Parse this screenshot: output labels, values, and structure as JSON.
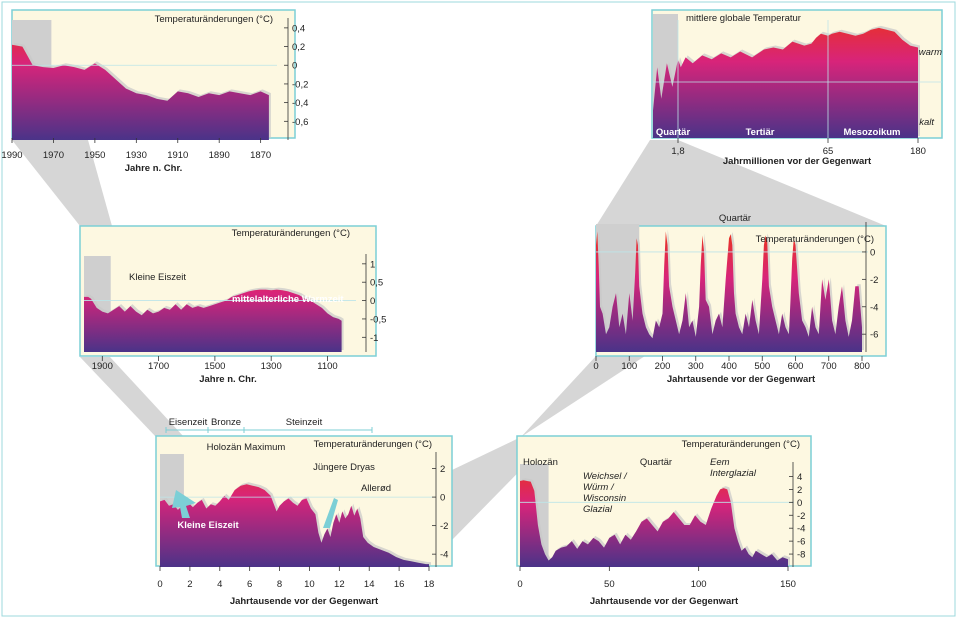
{
  "colors": {
    "top": "#e8312a",
    "mid": "#d8247a",
    "bottom": "#4a3388",
    "frame": "#7ccfd6",
    "bg": "#fdf8e1",
    "connector": "#d6d6d6",
    "shadow": "#c8c8c8",
    "highlight": "#cfcfcf"
  },
  "chart_data": [
    {
      "id": "p1",
      "type": "area",
      "xlabel": "Jahre n. Chr.",
      "ylabel": "Temperaturänderungen (°C)",
      "xlim": [
        1990,
        1865
      ],
      "ylim": [
        -0.8,
        0.42
      ],
      "xticks": [
        1990,
        1970,
        1950,
        1930,
        1910,
        1890,
        1870
      ],
      "yticks": [
        0.4,
        0.2,
        0,
        -0.2,
        -0.4,
        -0.6
      ],
      "ytick_labels": [
        "0,4",
        "0,2",
        "0",
        "-0,2",
        "-0,4",
        "-0,6"
      ],
      "x": [
        1990,
        1985,
        1983,
        1980,
        1975,
        1970,
        1965,
        1960,
        1955,
        1950,
        1945,
        1940,
        1935,
        1930,
        1925,
        1920,
        1915,
        1910,
        1905,
        1900,
        1895,
        1890,
        1885,
        1880,
        1875,
        1870,
        1866
      ],
      "y": [
        0.22,
        0.2,
        0.12,
        0.0,
        -0.02,
        -0.03,
        0.0,
        -0.02,
        -0.05,
        0.02,
        -0.05,
        -0.15,
        -0.25,
        -0.3,
        -0.32,
        -0.36,
        -0.38,
        -0.28,
        -0.3,
        -0.34,
        -0.3,
        -0.32,
        -0.28,
        -0.3,
        -0.32,
        -0.28,
        -0.32
      ],
      "highlight": [
        1990,
        1971
      ]
    },
    {
      "id": "p2",
      "type": "area",
      "title": "mittlere globale Temperatur",
      "xlabel": "Jahrmillionen vor der Gegenwart",
      "xticks": [
        1.8,
        65,
        180
      ],
      "xtick_labels": [
        "1,8",
        "65",
        "180"
      ],
      "labels": {
        "warm": "warm",
        "kalt": "kalt"
      },
      "segments": [
        "Quartär",
        "Tertiär",
        "Mesozoikum"
      ],
      "x": [
        0,
        0.3,
        0.6,
        1.0,
        1.4,
        1.8,
        3,
        5,
        8,
        12,
        16,
        20,
        24,
        28,
        33,
        38,
        42,
        46,
        50,
        55,
        58,
        60,
        62,
        65,
        70,
        80,
        90,
        100,
        110,
        120,
        130,
        140,
        150,
        160,
        170,
        180
      ],
      "y": [
        -0.9,
        0.2,
        -0.6,
        0.3,
        -0.3,
        0.4,
        0.2,
        0.45,
        0.3,
        0.5,
        0.4,
        0.55,
        0.45,
        0.6,
        0.45,
        0.65,
        0.7,
        0.65,
        0.85,
        0.75,
        0.8,
        0.95,
        1.05,
        1.0,
        1.05,
        1.1,
        1.05,
        1.0,
        1.05,
        1.15,
        1.2,
        1.15,
        1.1,
        0.9,
        0.75,
        0.7
      ],
      "ylim": [
        -1.6,
        1.4
      ],
      "highlight": [
        0,
        1.8
      ]
    },
    {
      "id": "p3",
      "type": "area",
      "xlabel": "Jahre n. Chr.",
      "ylabel": "Temperaturänderungen (°C)",
      "xlim": [
        1965,
        1020
      ],
      "ylim": [
        -1.4,
        1.05
      ],
      "xticks": [
        1900,
        1700,
        1500,
        1300,
        1100
      ],
      "yticks": [
        1,
        0.5,
        0,
        -0.5,
        -1
      ],
      "ytick_labels": [
        "1",
        "0,5",
        "0",
        "-0,5",
        "-1"
      ],
      "annotations": [
        "Kleine Eiszeit",
        "mittelalterliche Warmzeit"
      ],
      "x": [
        1965,
        1950,
        1940,
        1920,
        1900,
        1880,
        1860,
        1840,
        1820,
        1800,
        1780,
        1760,
        1740,
        1720,
        1700,
        1680,
        1660,
        1640,
        1620,
        1600,
        1580,
        1560,
        1540,
        1520,
        1500,
        1480,
        1460,
        1440,
        1420,
        1400,
        1380,
        1360,
        1340,
        1320,
        1300,
        1280,
        1260,
        1240,
        1220,
        1200,
        1180,
        1160,
        1140,
        1120,
        1100,
        1080,
        1060,
        1050
      ],
      "y": [
        0.1,
        0.1,
        0.05,
        -0.2,
        -0.3,
        -0.35,
        -0.25,
        -0.15,
        -0.3,
        -0.15,
        -0.3,
        -0.4,
        -0.25,
        -0.35,
        -0.3,
        -0.2,
        -0.25,
        -0.1,
        -0.25,
        -0.1,
        -0.2,
        -0.15,
        -0.2,
        -0.15,
        -0.1,
        -0.05,
        0.0,
        0.1,
        0.15,
        0.2,
        0.25,
        0.28,
        0.3,
        0.3,
        0.28,
        0.3,
        0.28,
        0.25,
        0.2,
        0.15,
        0.05,
        0.0,
        -0.1,
        -0.2,
        -0.35,
        -0.45,
        -0.5,
        -0.55
      ],
      "highlight": [
        1965,
        1870
      ]
    },
    {
      "id": "p4",
      "type": "area",
      "title": "Quartär",
      "xlabel": "Jahrtausende vor der Gegenwart",
      "ylabel": "Temperaturänderungen (°C)",
      "xlim": [
        0,
        800
      ],
      "ylim": [
        -7.3,
        1.6
      ],
      "xticks": [
        0,
        100,
        200,
        300,
        400,
        500,
        600,
        700,
        800
      ],
      "yticks": [
        0,
        -2,
        -4,
        -6
      ],
      "x": [
        0,
        4,
        8,
        12,
        20,
        30,
        40,
        50,
        60,
        70,
        80,
        90,
        100,
        110,
        118,
        122,
        126,
        130,
        140,
        150,
        160,
        170,
        180,
        190,
        200,
        205,
        210,
        215,
        220,
        230,
        240,
        250,
        260,
        270,
        280,
        290,
        300,
        310,
        315,
        320,
        325,
        330,
        340,
        350,
        360,
        370,
        380,
        390,
        400,
        405,
        410,
        415,
        420,
        430,
        440,
        450,
        460,
        470,
        480,
        490,
        500,
        505,
        510,
        515,
        520,
        530,
        540,
        550,
        560,
        570,
        580,
        585,
        590,
        595,
        600,
        610,
        620,
        630,
        640,
        650,
        660,
        670,
        680,
        690,
        700,
        710,
        720,
        730,
        740,
        750,
        760,
        770,
        780,
        790,
        800
      ],
      "y": [
        0.5,
        1.5,
        -1,
        -4,
        -4.5,
        -6,
        -5.5,
        -4,
        -3,
        -5.5,
        -4.5,
        -6,
        -3,
        -5,
        -1.5,
        1,
        0.5,
        -2.5,
        -4.5,
        -5.5,
        -6,
        -6.3,
        -5,
        -5.5,
        -4.5,
        -1,
        1.5,
        0.5,
        -2.5,
        -4,
        -5,
        -6,
        -5,
        -3,
        -5.5,
        -5,
        -6.2,
        -4,
        -1,
        1.2,
        0,
        -3.5,
        -4,
        -6,
        -5,
        -4.5,
        -5.5,
        -2,
        1,
        1.3,
        0.5,
        -3,
        -4.5,
        -5.5,
        -6,
        -4.5,
        -5.5,
        -3.5,
        -5,
        -6,
        -2,
        0.5,
        1.2,
        0.8,
        -2.5,
        -4,
        -5,
        -6,
        -4.5,
        -5.5,
        -6,
        -3.5,
        -0.5,
        1,
        0.5,
        -3,
        -5,
        -5.5,
        -6.2,
        -4,
        -5.5,
        -6,
        -2,
        -3.5,
        -2,
        -5,
        -6,
        -4,
        -2.5,
        -5,
        -6.2,
        -5,
        -2.5,
        -2.5,
        -5.5
      ],
      "highlight": [
        0,
        130
      ]
    },
    {
      "id": "p5",
      "type": "area",
      "xlabel": "Jahrtausende vor der Gegenwart",
      "ylabel": "Temperaturänderungen (°C)",
      "xlim": [
        0,
        18
      ],
      "ylim": [
        -4.9,
        2.6
      ],
      "xticks": [
        0,
        2,
        4,
        6,
        8,
        10,
        12,
        14,
        16,
        18
      ],
      "yticks": [
        2,
        0,
        -2,
        -4
      ],
      "annotations": [
        "Holozän Maximum",
        "Jüngere Dryas",
        "Allerød",
        "Kleine Eiszeit"
      ],
      "top_bar": [
        "Eisenzeit",
        "Bronze",
        "Steinzeit"
      ],
      "x": [
        0,
        0.3,
        0.6,
        0.9,
        1.2,
        1.5,
        1.8,
        2.2,
        2.5,
        2.8,
        3.1,
        3.4,
        3.7,
        4.0,
        4.3,
        4.6,
        5.0,
        5.4,
        5.8,
        6.2,
        6.6,
        7.0,
        7.4,
        7.8,
        8.0,
        8.3,
        8.6,
        8.9,
        9.2,
        9.5,
        9.8,
        10.1,
        10.4,
        10.6,
        10.8,
        11.0,
        11.2,
        11.4,
        11.6,
        11.8,
        12.0,
        12.2,
        12.4,
        12.6,
        12.8,
        13.0,
        13.2,
        13.4,
        13.6,
        13.9,
        14.3,
        14.8,
        15.3,
        15.8,
        16.3,
        16.8,
        17.3,
        17.8,
        18.0
      ],
      "y": [
        -0.3,
        -0.2,
        -0.6,
        -0.5,
        -0.9,
        -0.6,
        -0.3,
        -0.7,
        -0.4,
        -0.2,
        -0.8,
        -0.5,
        -0.6,
        -0.3,
        0.1,
        -0.2,
        0.5,
        0.8,
        0.9,
        0.8,
        0.7,
        0.5,
        0.1,
        -1.0,
        -0.6,
        -0.3,
        -0.1,
        -0.4,
        -0.6,
        -0.2,
        -0.1,
        -0.8,
        -1.2,
        -2.5,
        -3.2,
        -2.6,
        -2.2,
        -2.8,
        -1.8,
        -1.2,
        -1.8,
        -1.0,
        -1.5,
        -1.2,
        -0.6,
        -1.3,
        -0.8,
        -1.5,
        -2.8,
        -3.2,
        -3.5,
        -3.7,
        -3.9,
        -4.2,
        -4.4,
        -4.5,
        -4.6,
        -4.7,
        -4.7
      ],
      "highlight": [
        0,
        1.6
      ]
    },
    {
      "id": "p6",
      "type": "area",
      "xlabel": "Jahrtausende vor der Gegenwart",
      "ylabel": "Temperaturänderungen (°C)",
      "xlim": [
        0,
        150
      ],
      "ylim": [
        -10,
        5
      ],
      "xticks": [
        0,
        50,
        100,
        150
      ],
      "yticks": [
        4,
        2,
        0,
        -2,
        -4,
        -6,
        -8
      ],
      "annotations": [
        "Holozän",
        "Weichsel / Würm / Wisconsin Glazial",
        "Quartär",
        "Eem Interglazial"
      ],
      "x": [
        0,
        2,
        4,
        6,
        8,
        10,
        12,
        14,
        16,
        18,
        20,
        23,
        26,
        29,
        32,
        35,
        38,
        41,
        44,
        47,
        50,
        53,
        56,
        59,
        62,
        65,
        68,
        71,
        74,
        77,
        80,
        83,
        86,
        89,
        92,
        95,
        98,
        101,
        104,
        107,
        110,
        112,
        114,
        116,
        118,
        120,
        122,
        124,
        126,
        128,
        130,
        132,
        135,
        138,
        141,
        144,
        147,
        150
      ],
      "y": [
        3.3,
        3.4,
        3.3,
        3.2,
        1.8,
        -3.5,
        -6.5,
        -8,
        -9,
        -8.5,
        -7.5,
        -7,
        -6.8,
        -6,
        -7.2,
        -6,
        -6.5,
        -5.5,
        -6,
        -7,
        -5.5,
        -5,
        -6.5,
        -5,
        -5.8,
        -4.5,
        -3,
        -2.5,
        -3.5,
        -4.5,
        -3,
        -2.5,
        -1.5,
        -2.5,
        -3.5,
        -3.5,
        -2,
        -3,
        -3.5,
        -1,
        1,
        2,
        2.2,
        2,
        0,
        -4,
        -6,
        -7.5,
        -7,
        -8,
        -8.5,
        -7.5,
        -8,
        -8.5,
        -8,
        -9,
        -8.5,
        -8.8
      ],
      "highlight": [
        0,
        16
      ]
    }
  ]
}
